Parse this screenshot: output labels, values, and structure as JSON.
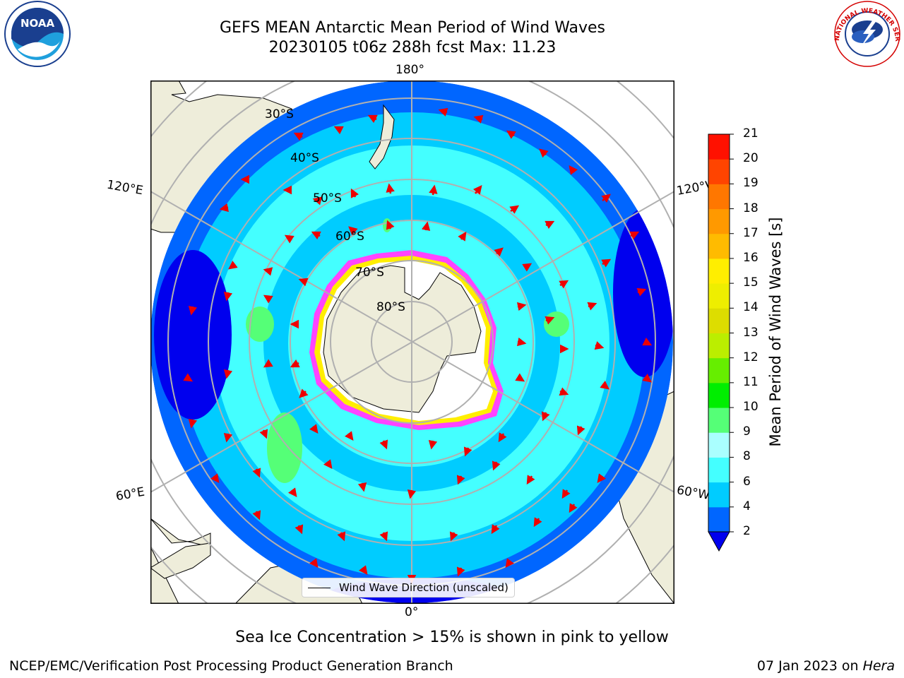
{
  "title": {
    "line1": "GEFS MEAN Antarctic Mean Period of Wind Waves",
    "line2": "20230105 t06z 288h fcst   Max: 11.23"
  },
  "longitude_labels": {
    "top": "180°",
    "bottom": "0°",
    "upper_left": "120°E",
    "upper_right": "120°W",
    "lower_left": "60°E",
    "lower_right": "60°W"
  },
  "latitude_labels": [
    "30°S",
    "40°S",
    "50°S",
    "60°S",
    "70°S",
    "80°S"
  ],
  "legend": {
    "label": "Wind Wave Direction (unscaled)"
  },
  "colorbar": {
    "label": "Mean Period of Wind Waves [s]",
    "ticks": [
      "2",
      "4",
      "6",
      "8",
      "9",
      "10",
      "11",
      "12",
      "13",
      "14",
      "15",
      "16",
      "17",
      "18",
      "19",
      "20",
      "21"
    ],
    "colors": [
      "#0066ff",
      "#00ccff",
      "#44ffff",
      "#aaffff",
      "#55ff77",
      "#00ee00",
      "#66ee00",
      "#bbee00",
      "#dddd00",
      "#eeee00",
      "#ffee00",
      "#ffbb00",
      "#ff9900",
      "#ff7700",
      "#ff4400",
      "#ff1100"
    ],
    "extend_min_color": "#0000ee"
  },
  "notes": {
    "sea_ice": "Sea Ice Concentration > 15% is shown in pink to yellow"
  },
  "footer": {
    "left": "NCEP/EMC/Verification Post Processing Product Generation Branch",
    "date": "07 Jan 2023 on ",
    "machine": "Hera"
  },
  "logos": {
    "left": "NOAA",
    "right": "NATIONAL WEATHER SERVICE"
  },
  "colors": {
    "land": "#eeedda",
    "ocean_deep": "#0066ff",
    "ocean_mid": "#00ccff",
    "ocean_light": "#44ffff",
    "ice_edge": "#ff44ff",
    "arrow": "#ee0000",
    "grid": "#b0b0b0"
  }
}
